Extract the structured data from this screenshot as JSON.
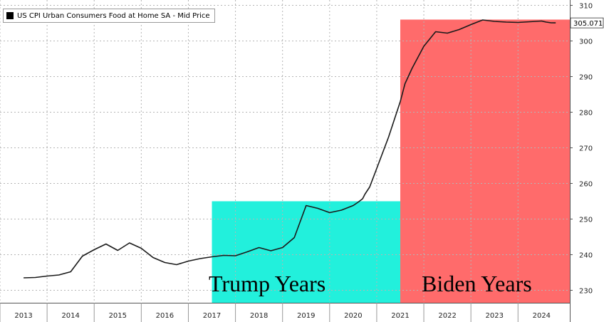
{
  "chart_data": {
    "type": "line",
    "series": [
      {
        "name": "US CPI Urban Consumers Food at Home SA - Mid Price",
        "color": "#1a1a1a",
        "x": [
          2013.0,
          2013.25,
          2013.5,
          2013.75,
          2014.0,
          2014.25,
          2014.5,
          2014.75,
          2015.0,
          2015.25,
          2015.5,
          2015.75,
          2016.0,
          2016.25,
          2016.5,
          2016.75,
          2017.0,
          2017.25,
          2017.5,
          2017.75,
          2018.0,
          2018.25,
          2018.5,
          2018.75,
          2019.0,
          2019.25,
          2019.5,
          2019.75,
          2020.0,
          2020.1,
          2020.2,
          2020.25,
          2020.35,
          2020.5,
          2020.75,
          2021.0,
          2021.1,
          2021.25,
          2021.5,
          2021.75,
          2022.0,
          2022.25,
          2022.5,
          2022.75,
          2023.0,
          2023.25,
          2023.5,
          2023.75,
          2024.0,
          2024.1,
          2024.2,
          2024.3
        ],
        "values": [
          233.5,
          233.6,
          234.0,
          234.3,
          235.2,
          239.6,
          241.4,
          243.0,
          241.2,
          243.3,
          241.8,
          239.2,
          237.8,
          237.2,
          238.2,
          238.9,
          239.4,
          239.8,
          239.7,
          240.8,
          242.0,
          241.1,
          242.0,
          244.8,
          253.8,
          253.0,
          251.8,
          252.5,
          253.8,
          254.7,
          255.7,
          257.0,
          259.0,
          264.2,
          273.0,
          283.0,
          288.0,
          292.3,
          298.5,
          302.6,
          302.2,
          303.2,
          304.6,
          305.9,
          305.5,
          305.3,
          305.2,
          305.4,
          305.6,
          305.3,
          305.1,
          305.071
        ]
      }
    ],
    "y_ticks": [
      230,
      240,
      250,
      260,
      270,
      280,
      290,
      300,
      310
    ],
    "x_ticks": [
      "2013",
      "2014",
      "2015",
      "2016",
      "2017",
      "2018",
      "2019",
      "2020",
      "2021",
      "2022",
      "2023",
      "2024"
    ],
    "ylim": [
      226.5,
      311.5
    ],
    "xlim": [
      2012.5,
      2024.6
    ],
    "last_value_label": "305.071",
    "grid": true,
    "legend_position": "top-left",
    "periods": [
      {
        "label": "Trump Years",
        "start": 2017.0,
        "end": 2021.0,
        "y_top": 255,
        "color": "#22f0dc"
      },
      {
        "label": "Biden Years",
        "start": 2021.0,
        "end": 2024.6,
        "y_top": 306,
        "color": "#ff6b6b"
      }
    ]
  }
}
